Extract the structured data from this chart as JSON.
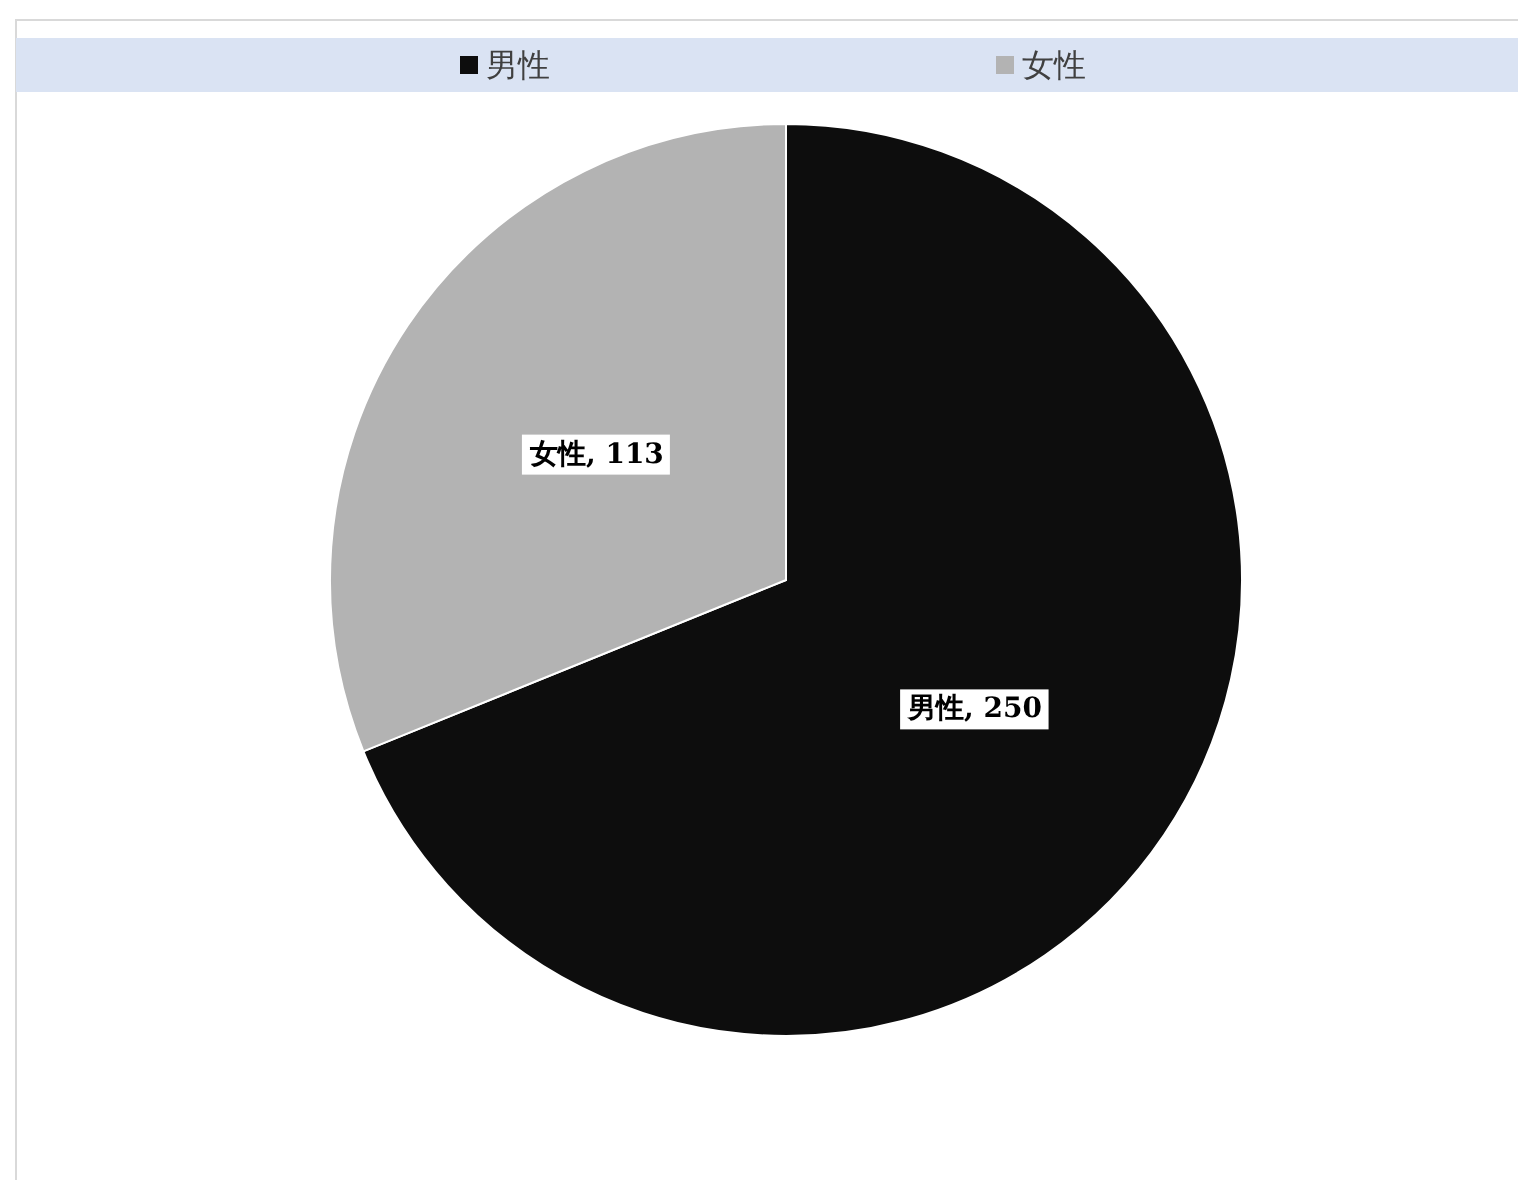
{
  "chart_data": {
    "type": "pie",
    "categories": [
      "男性",
      "女性"
    ],
    "values": [
      250,
      113
    ],
    "value_labels": [
      "男性, 250",
      "女性, 113"
    ],
    "colors": [
      "#0d0d0d",
      "#b3b3b3"
    ],
    "legend": "top"
  }
}
